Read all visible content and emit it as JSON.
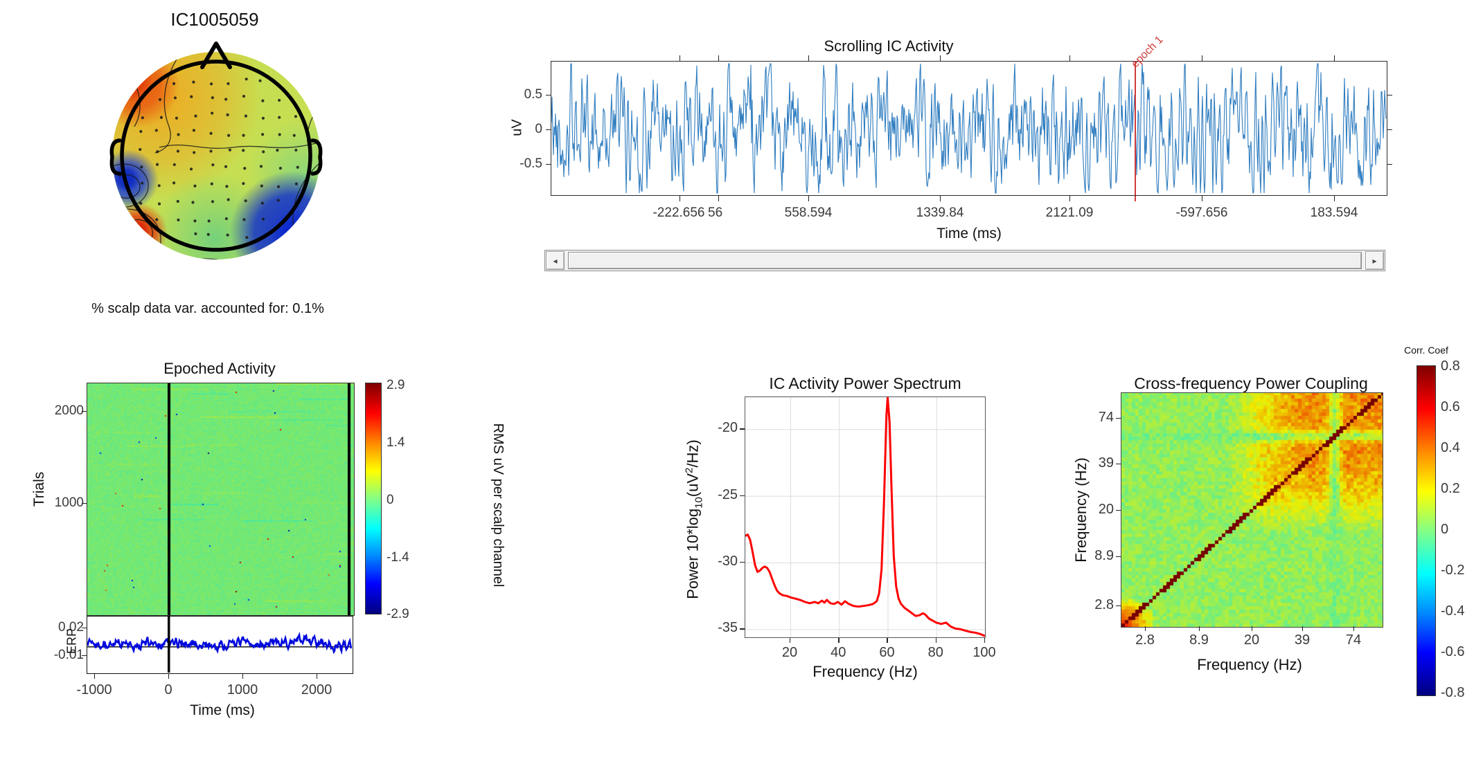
{
  "topo": {
    "title": "IC1005059",
    "caption": "% scalp data var. accounted for: 0.1%"
  },
  "scroll": {
    "title": "Scrolling IC Activity",
    "ylabel": "uV",
    "xlabel": "Time (ms)",
    "ytick_labels": [
      "0.5",
      "0",
      "-0.5"
    ],
    "xtick_labels": [
      "-222.656",
      "558.594",
      "1339.84",
      "2121.09",
      "-597.656",
      "183.594"
    ],
    "xtick_overlap_label": "56",
    "epoch_label": "epoch 1",
    "line_color": "#2e7cbf",
    "epoch_color": "#cf3a3a"
  },
  "scrollbar": {
    "left_arrow": "◂",
    "right_arrow": "▸"
  },
  "epoched": {
    "title": "Epoched Activity",
    "ylabel": "Trials",
    "ytick_labels": [
      "2000",
      "1000"
    ],
    "xtick_labels": [
      "-1000",
      "0",
      "1000",
      "2000"
    ],
    "xlabel": "Time (ms)",
    "colorbar_ticks": [
      "2.9",
      "1.4",
      "0",
      "-1.4",
      "-2.9"
    ],
    "colorbar_label": "RMS uV per scalp channel",
    "erp_label": "ERP",
    "erp_ytick_labels": [
      "0.02",
      "-0.01"
    ],
    "trace_color": "#0008dd"
  },
  "spectrum": {
    "title": "IC Activity Power Spectrum",
    "xlabel": "Frequency (Hz)",
    "ylabel_parts": {
      "pre": "Power 10*log",
      "sub": "10",
      "mid": "(uV",
      "sup": "2",
      "post": "/Hz)"
    },
    "xtick_labels": [
      "20",
      "40",
      "60",
      "80",
      "100"
    ],
    "ytick_labels": [
      "-20",
      "-25",
      "-30",
      "-35"
    ],
    "line_color": "#ff0000"
  },
  "crossfreq": {
    "title": "Cross-frequency Power Coupling",
    "xlabel": "Frequency (Hz)",
    "ylabel": "Frequency (Hz)",
    "xtick_labels": [
      "2.8",
      "8.9",
      "20",
      "39",
      "74"
    ],
    "ytick_labels": [
      "74",
      "39",
      "20",
      "8.9",
      "2.8"
    ],
    "colorbar_title": "Corr. Coef",
    "colorbar_ticks": [
      "0.8",
      "0.6",
      "0.4",
      "0.2",
      "0",
      "-0.2",
      "-0.4",
      "-0.6",
      "-0.8"
    ]
  },
  "chart_data": [
    {
      "id": "scrolling_ic_activity",
      "type": "line",
      "title": "Scrolling IC Activity",
      "xlabel": "Time (ms)",
      "ylabel": "uV",
      "y_ticks": [
        0.5,
        0,
        -0.5
      ],
      "ylim": [
        -0.97,
        1.02
      ],
      "x_tick_labels": [
        "-222.656",
        "558.594",
        "1339.84",
        "2121.09",
        "-597.656",
        "183.594"
      ],
      "overlapped_x_tick_label": "56",
      "annotations": [
        {
          "label": "epoch 1",
          "type": "vline",
          "x_frac": 0.698,
          "color": "#cf3a3a"
        }
      ],
      "signal": "zero-mean continuous IC activation noise, std ~0.25 uV, occasional peaks to ±0.75 uV",
      "line_color": "#2e7cbf"
    },
    {
      "id": "epoched_activity",
      "type": "heatmap",
      "title": "Epoched Activity",
      "xlabel": "Time (ms)",
      "ylabel": "Trials",
      "x_ticks": [
        -1000,
        0,
        1000,
        2000
      ],
      "y_ticks": [
        2000,
        1000
      ],
      "xlim": [
        -1100,
        2500
      ],
      "n_trials_approx": 2300,
      "value_range": [
        -2.9,
        2.9
      ],
      "mean_value": 0,
      "colorbar_label": "RMS uV per scalp channel",
      "colorbar_ticks": [
        2.9,
        1.4,
        0,
        -1.4,
        -2.9
      ],
      "event_line_times_ms": [
        0,
        2450
      ],
      "erp": {
        "label": "ERP",
        "y_ticks": [
          0.02,
          -0.01
        ],
        "description": "noisy near-zero ERP trace"
      }
    },
    {
      "id": "ic_activity_power_spectrum",
      "type": "line",
      "title": "IC Activity Power Spectrum",
      "xlabel": "Frequency (Hz)",
      "ylabel": "Power 10*log10(uV^2/Hz)",
      "x_ticks": [
        20,
        40,
        60,
        80,
        100
      ],
      "y_ticks": [
        -20,
        -25,
        -30,
        -35
      ],
      "xlim": [
        1.5,
        100
      ],
      "ylim": [
        -35.6,
        -17.6
      ],
      "grid": true,
      "peak_hz": 60,
      "line_color": "#ff0000",
      "points": [
        [
          1.5,
          -28.0
        ],
        [
          2.5,
          -27.9
        ],
        [
          3.5,
          -28.3
        ],
        [
          4.5,
          -29.2
        ],
        [
          5.5,
          -30.2
        ],
        [
          6.5,
          -30.7
        ],
        [
          7.5,
          -30.6
        ],
        [
          8.5,
          -30.4
        ],
        [
          9.5,
          -30.3
        ],
        [
          10.5,
          -30.4
        ],
        [
          11.5,
          -30.7
        ],
        [
          12.5,
          -31.2
        ],
        [
          13.5,
          -31.7
        ],
        [
          14.5,
          -32.1
        ],
        [
          15.5,
          -32.3
        ],
        [
          17,
          -32.45
        ],
        [
          18.5,
          -32.5
        ],
        [
          20,
          -32.6
        ],
        [
          22,
          -32.7
        ],
        [
          24,
          -32.8
        ],
        [
          26,
          -32.95
        ],
        [
          28,
          -33.05
        ],
        [
          30,
          -32.95
        ],
        [
          31.5,
          -33.05
        ],
        [
          33,
          -32.85
        ],
        [
          34,
          -33.0
        ],
        [
          35,
          -32.8
        ],
        [
          36.5,
          -33.05
        ],
        [
          38,
          -33.1
        ],
        [
          39.5,
          -32.95
        ],
        [
          41,
          -33.15
        ],
        [
          42.5,
          -32.9
        ],
        [
          44,
          -33.1
        ],
        [
          46,
          -33.25
        ],
        [
          48,
          -33.3
        ],
        [
          50,
          -33.25
        ],
        [
          52,
          -33.2
        ],
        [
          54,
          -33.1
        ],
        [
          55.5,
          -32.9
        ],
        [
          56.5,
          -32.3
        ],
        [
          57.5,
          -30.5
        ],
        [
          58.5,
          -25.5
        ],
        [
          59.5,
          -19.0
        ],
        [
          60,
          -17.6
        ],
        [
          60.8,
          -19.5
        ],
        [
          61.5,
          -24.0
        ],
        [
          62.5,
          -29.5
        ],
        [
          63.5,
          -31.8
        ],
        [
          64.5,
          -32.7
        ],
        [
          65.5,
          -33.1
        ],
        [
          67,
          -33.4
        ],
        [
          68.5,
          -33.6
        ],
        [
          70,
          -33.8
        ],
        [
          71.5,
          -34.0
        ],
        [
          73,
          -33.95
        ],
        [
          74.5,
          -33.8
        ],
        [
          75.5,
          -33.9
        ],
        [
          77,
          -34.2
        ],
        [
          78.5,
          -34.35
        ],
        [
          80,
          -34.5
        ],
        [
          82,
          -34.6
        ],
        [
          84,
          -34.5
        ],
        [
          86,
          -34.8
        ],
        [
          88,
          -34.95
        ],
        [
          90,
          -35.0
        ],
        [
          92,
          -35.1
        ],
        [
          94,
          -35.2
        ],
        [
          96,
          -35.25
        ],
        [
          98,
          -35.35
        ],
        [
          100,
          -35.5
        ]
      ]
    },
    {
      "id": "cross_frequency_power_coupling",
      "type": "heatmap",
      "title": "Cross-frequency Power Coupling",
      "xlabel": "Frequency (Hz)",
      "ylabel": "Frequency (Hz)",
      "x_ticks": [
        2.8,
        8.9,
        20,
        39,
        74
      ],
      "y_ticks": [
        74,
        39,
        20,
        8.9,
        2.8
      ],
      "freq_scale": "log",
      "clim": [
        -0.8,
        0.8
      ],
      "colorbar_label": "Corr. Coef",
      "colorbar_ticks": [
        0.8,
        0.6,
        0.4,
        0.2,
        0,
        -0.2,
        -0.4,
        -0.6,
        -0.8
      ],
      "structure": {
        "diagonal_value": 0.8,
        "high_freq_block_above_20hz_value": 0.32,
        "background_value": 0.05,
        "low_freq_corner_value": 0.55,
        "light_notch_band_hz": 62
      }
    }
  ]
}
